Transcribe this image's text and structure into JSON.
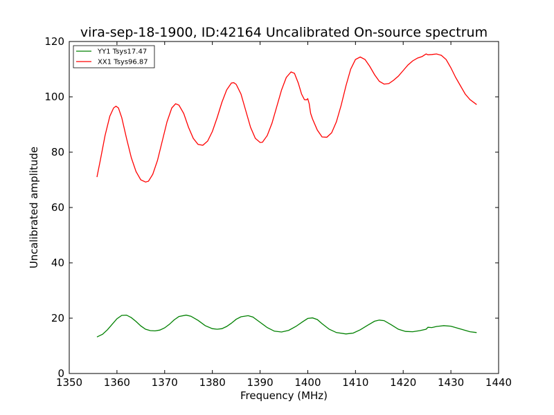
{
  "chart_data": {
    "type": "line",
    "title": "vira-sep-18-1900, ID:42164 Uncalibrated On-source spectrum",
    "xlabel": "Frequency (MHz)",
    "ylabel": "Uncalibrated amplitude",
    "xlim": [
      1350,
      1440
    ],
    "ylim": [
      0,
      120
    ],
    "xticks": [
      "1350",
      "1360",
      "1370",
      "1380",
      "1390",
      "1400",
      "1410",
      "1420",
      "1430",
      "1440"
    ],
    "yticks": [
      "0",
      "20",
      "40",
      "60",
      "80",
      "100",
      "120"
    ],
    "grid": false,
    "legend_position": "top-left",
    "series": [
      {
        "name": "YY1 Tsys17.47",
        "color": "#008000",
        "x": [
          1355.8,
          1357.0,
          1358.0,
          1359.0,
          1360.0,
          1361.0,
          1362.0,
          1363.0,
          1364.0,
          1365.0,
          1366.0,
          1367.0,
          1368.0,
          1369.0,
          1370.0,
          1371.0,
          1372.0,
          1373.0,
          1374.5,
          1375.5,
          1377.0,
          1378.5,
          1380.0,
          1381.0,
          1382.0,
          1383.0,
          1384.0,
          1385.0,
          1386.0,
          1387.5,
          1388.5,
          1390.0,
          1391.5,
          1393.0,
          1394.5,
          1396.0,
          1397.5,
          1399.0,
          1400.0,
          1401.0,
          1402.0,
          1403.0,
          1404.5,
          1406.0,
          1408.0,
          1409.5,
          1411.0,
          1412.5,
          1414.0,
          1415.0,
          1416.0,
          1417.5,
          1419.0,
          1420.5,
          1422.0,
          1423.5,
          1424.8,
          1425.2,
          1426.0,
          1427.0,
          1428.5,
          1430.0,
          1432.0,
          1434.0,
          1435.4
        ],
        "y": [
          13.2,
          14.2,
          15.8,
          17.8,
          19.8,
          21.0,
          21.1,
          20.2,
          18.8,
          17.2,
          16.0,
          15.5,
          15.4,
          15.7,
          16.5,
          17.8,
          19.4,
          20.6,
          21.1,
          20.7,
          19.2,
          17.3,
          16.2,
          16.0,
          16.2,
          17.0,
          18.2,
          19.6,
          20.5,
          20.9,
          20.4,
          18.5,
          16.6,
          15.3,
          15.0,
          15.6,
          17.0,
          18.8,
          19.9,
          20.1,
          19.5,
          18.0,
          16.0,
          14.8,
          14.3,
          14.6,
          15.8,
          17.4,
          18.9,
          19.3,
          19.1,
          17.6,
          16.0,
          15.2,
          15.1,
          15.5,
          16.0,
          16.7,
          16.6,
          17.0,
          17.3,
          17.1,
          16.1,
          15.1,
          14.8
        ]
      },
      {
        "name": "XX1 Tsys96.87",
        "color": "#ff0000",
        "x": [
          1355.8,
          1356.5,
          1357.5,
          1358.5,
          1359.3,
          1359.8,
          1360.3,
          1361.0,
          1362.0,
          1363.0,
          1364.0,
          1365.0,
          1366.0,
          1366.6,
          1367.5,
          1368.5,
          1369.5,
          1370.5,
          1371.5,
          1372.3,
          1373.0,
          1374.0,
          1375.0,
          1376.0,
          1377.0,
          1378.0,
          1379.0,
          1380.0,
          1381.0,
          1382.0,
          1383.0,
          1384.0,
          1384.5,
          1385.0,
          1386.0,
          1387.0,
          1388.0,
          1389.0,
          1390.0,
          1390.5,
          1391.5,
          1392.5,
          1393.5,
          1394.5,
          1395.5,
          1396.5,
          1397.2,
          1398.0,
          1398.7,
          1399.3,
          1399.7,
          1400.0,
          1400.3,
          1400.6,
          1401.0,
          1402.0,
          1403.0,
          1404.0,
          1405.0,
          1406.0,
          1407.0,
          1408.0,
          1409.0,
          1410.0,
          1411.0,
          1412.0,
          1413.0,
          1414.0,
          1415.0,
          1416.0,
          1417.0,
          1418.0,
          1419.0,
          1420.0,
          1421.0,
          1422.0,
          1423.0,
          1424.0,
          1424.8,
          1425.2,
          1426.0,
          1427.0,
          1428.0,
          1429.0,
          1430.0,
          1431.0,
          1432.0,
          1433.0,
          1434.0,
          1435.4
        ],
        "y": [
          71.0,
          77.0,
          86.0,
          93.0,
          96.0,
          96.6,
          96.0,
          92.5,
          85.0,
          78.0,
          73.0,
          70.0,
          69.2,
          69.5,
          72.0,
          77.0,
          84.0,
          91.0,
          96.0,
          97.5,
          97.0,
          94.0,
          89.0,
          85.0,
          82.8,
          82.5,
          84.0,
          87.5,
          92.5,
          98.0,
          102.5,
          105.0,
          105.1,
          104.5,
          101.0,
          95.0,
          89.0,
          85.0,
          83.5,
          83.6,
          86.0,
          90.5,
          96.5,
          102.5,
          107.0,
          109.0,
          108.5,
          105.0,
          101.0,
          99.0,
          98.9,
          99.3,
          97.5,
          94.0,
          92.0,
          88.0,
          85.5,
          85.4,
          87.0,
          91.0,
          97.0,
          104.0,
          110.0,
          113.5,
          114.4,
          113.5,
          111.0,
          108.0,
          105.6,
          104.6,
          104.8,
          106.0,
          107.5,
          109.5,
          111.5,
          113.0,
          114.0,
          114.6,
          115.5,
          115.2,
          115.3,
          115.5,
          115.0,
          113.5,
          110.5,
          107.0,
          104.0,
          101.0,
          99.0,
          97.2
        ]
      }
    ]
  }
}
